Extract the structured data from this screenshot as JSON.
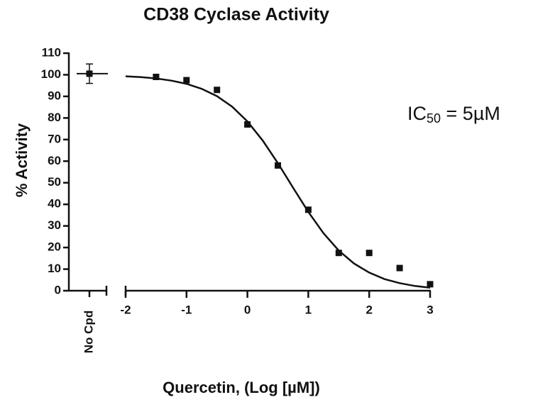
{
  "chart_data": {
    "type": "scatter",
    "title": "CD38 Cyclase Activity",
    "x_label": "Quercetin, (Log [µM])",
    "y_label": "% Activity",
    "annotation": {
      "main": "IC",
      "subscript": "50",
      "rest": " = 5µM"
    },
    "color": "#111111",
    "x": [
      -1.5,
      -1,
      -0.5,
      0,
      0.5,
      1,
      1.5,
      2,
      2.5,
      3
    ],
    "values": [
      99,
      97.5,
      93,
      77,
      58,
      37.5,
      17.5,
      17.5,
      10.5,
      3
    ],
    "fit": {
      "x": [
        -2,
        -1.75,
        -1.5,
        -1.25,
        -1,
        -0.75,
        -0.5,
        -0.25,
        0,
        0.25,
        0.5,
        0.75,
        1,
        1.25,
        1.5,
        1.75,
        2,
        2.25,
        2.5,
        2.75,
        3
      ],
      "values": [
        99.3,
        98.9,
        98.3,
        97.3,
        95.8,
        93.5,
        90.1,
        85.2,
        78.4,
        69.6,
        59.1,
        47.7,
        36.5,
        26.6,
        18.6,
        12.6,
        8.4,
        5.4,
        3.5,
        2.2,
        1.4
      ]
    },
    "control": {
      "label": "No Cpd",
      "value": 100.5,
      "error": 4.5
    },
    "xlim": [
      -2,
      3
    ],
    "xticks": [
      -2,
      -1,
      0,
      1,
      2,
      3
    ],
    "ylim": [
      0,
      110
    ],
    "yticks": [
      0,
      10,
      20,
      30,
      40,
      50,
      60,
      70,
      80,
      90,
      100,
      110
    ]
  }
}
